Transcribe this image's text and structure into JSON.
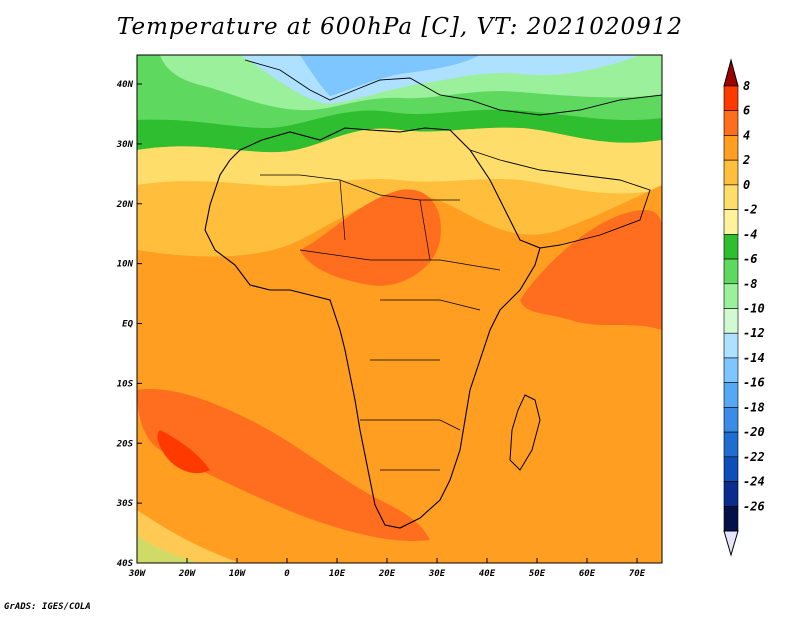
{
  "title": "Temperature at 600hPa [C], VT: 2021020912",
  "credit": "GrADS: IGES/COLA",
  "lat_labels": [
    "40N",
    "30N",
    "20N",
    "10N",
    "EQ",
    "10S",
    "20S",
    "30S",
    "40S"
  ],
  "lon_labels": [
    "30W",
    "20W",
    "10W",
    "0",
    "10E",
    "20E",
    "30E",
    "40E",
    "50E",
    "60E",
    "70E"
  ],
  "colorbar": {
    "labels": [
      "8",
      "6",
      "4",
      "2",
      "0",
      "-2",
      "-4",
      "-6",
      "-8",
      "-10",
      "-12",
      "-14",
      "-16",
      "-18",
      "-20",
      "-22",
      "-24",
      "-26"
    ],
    "colors": [
      "#9e0000",
      "#ff3a00",
      "#ff6e1e",
      "#ff9e20",
      "#ffbf3c",
      "#ffdd6a",
      "#fff29c",
      "#2fbe2f",
      "#5fd85f",
      "#9bf09b",
      "#d2fad2",
      "#aee0ff",
      "#7ec6ff",
      "#56a8f4",
      "#3a8ce6",
      "#1e6ed2",
      "#0e4eb8",
      "#0a2c8c",
      "#050f4a",
      "#e4e4ff"
    ]
  }
}
